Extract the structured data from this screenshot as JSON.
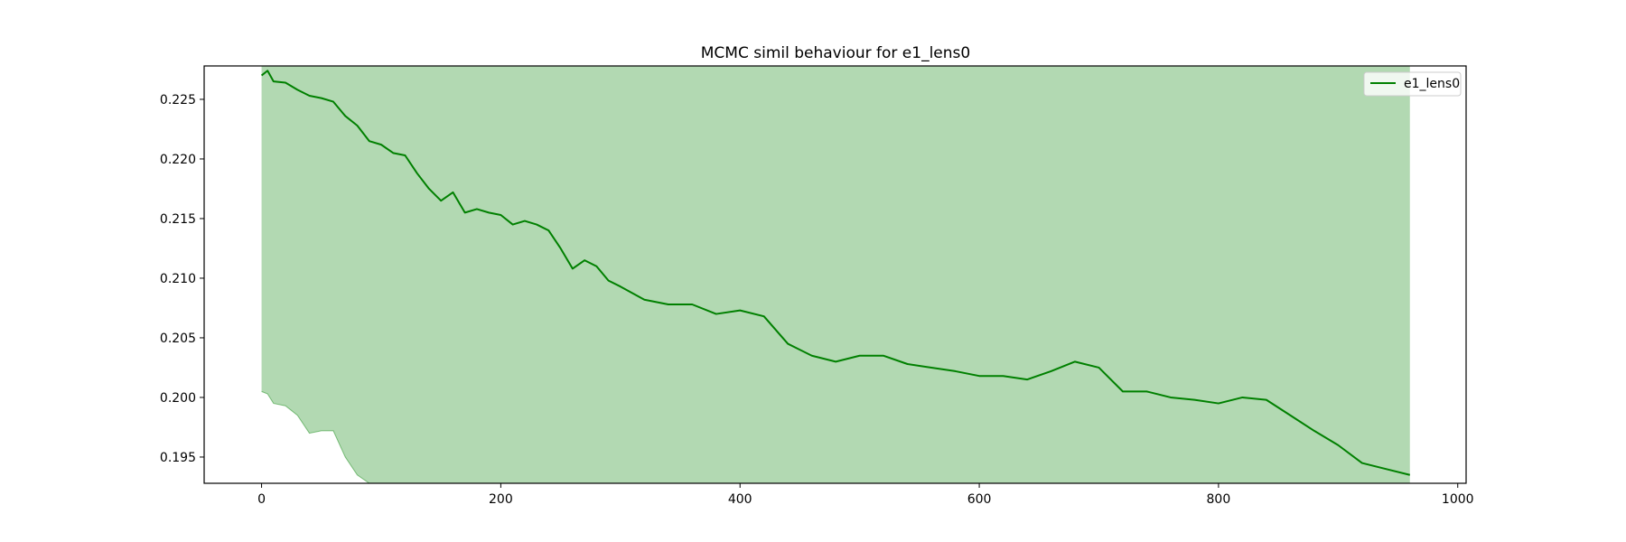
{
  "chart_data": {
    "type": "line",
    "title": "MCMC simil behaviour for e1_lens0",
    "xlabel": "",
    "ylabel": "",
    "xlim": [
      -48,
      1007
    ],
    "ylim": [
      0.1928,
      0.2278
    ],
    "xticks": [
      0,
      200,
      400,
      600,
      800,
      1000
    ],
    "xtick_labels": [
      "0",
      "200",
      "400",
      "600",
      "800",
      "1000"
    ],
    "yticks": [
      0.195,
      0.2,
      0.205,
      0.21,
      0.215,
      0.22,
      0.225
    ],
    "ytick_labels": [
      "0.195",
      "0.200",
      "0.205",
      "0.210",
      "0.215",
      "0.220",
      "0.225"
    ],
    "grid": false,
    "legend": {
      "position": "top-right",
      "entries": [
        "e1_lens0"
      ]
    },
    "colors": {
      "line": "#008000",
      "band_fill": "#008000",
      "band_alpha": 0.3
    },
    "series": [
      {
        "name": "e1_lens0",
        "x": [
          0,
          5,
          10,
          20,
          30,
          40,
          50,
          60,
          70,
          80,
          90,
          100,
          110,
          120,
          130,
          140,
          150,
          160,
          170,
          180,
          190,
          200,
          210,
          220,
          230,
          240,
          250,
          260,
          270,
          280,
          290,
          300,
          320,
          340,
          360,
          380,
          400,
          420,
          440,
          460,
          480,
          500,
          520,
          540,
          560,
          580,
          600,
          620,
          640,
          660,
          680,
          700,
          720,
          740,
          760,
          780,
          800,
          820,
          840,
          860,
          880,
          900,
          920,
          940,
          960
        ],
        "y": [
          0.227,
          0.2274,
          0.2265,
          0.2264,
          0.2258,
          0.2253,
          0.2251,
          0.2248,
          0.2236,
          0.2228,
          0.2215,
          0.2212,
          0.2205,
          0.2203,
          0.2188,
          0.2175,
          0.2165,
          0.2172,
          0.2155,
          0.2158,
          0.2155,
          0.2153,
          0.2145,
          0.2148,
          0.2145,
          0.214,
          0.2125,
          0.2108,
          0.2115,
          0.211,
          0.2098,
          0.2093,
          0.2082,
          0.2078,
          0.2078,
          0.207,
          0.2073,
          0.2068,
          0.2045,
          0.2035,
          0.203,
          0.2035,
          0.2035,
          0.2028,
          0.2025,
          0.2022,
          0.2018,
          0.2018,
          0.2015,
          0.2022,
          0.203,
          0.2025,
          0.2005,
          0.2005,
          0.2,
          0.1998,
          0.1995,
          0.2,
          0.1998,
          0.1985,
          0.1972,
          0.196,
          0.1945,
          0.194,
          0.1935
        ],
        "band_lower": {
          "x": [
            0,
            5,
            10,
            20,
            30,
            40,
            50,
            60,
            70,
            80,
            90
          ],
          "y": [
            0.2005,
            0.2003,
            0.1995,
            0.1993,
            0.1985,
            0.197,
            0.1972,
            0.1972,
            0.195,
            0.1935,
            0.192
          ]
        },
        "band_upper": "above plot area"
      }
    ]
  }
}
